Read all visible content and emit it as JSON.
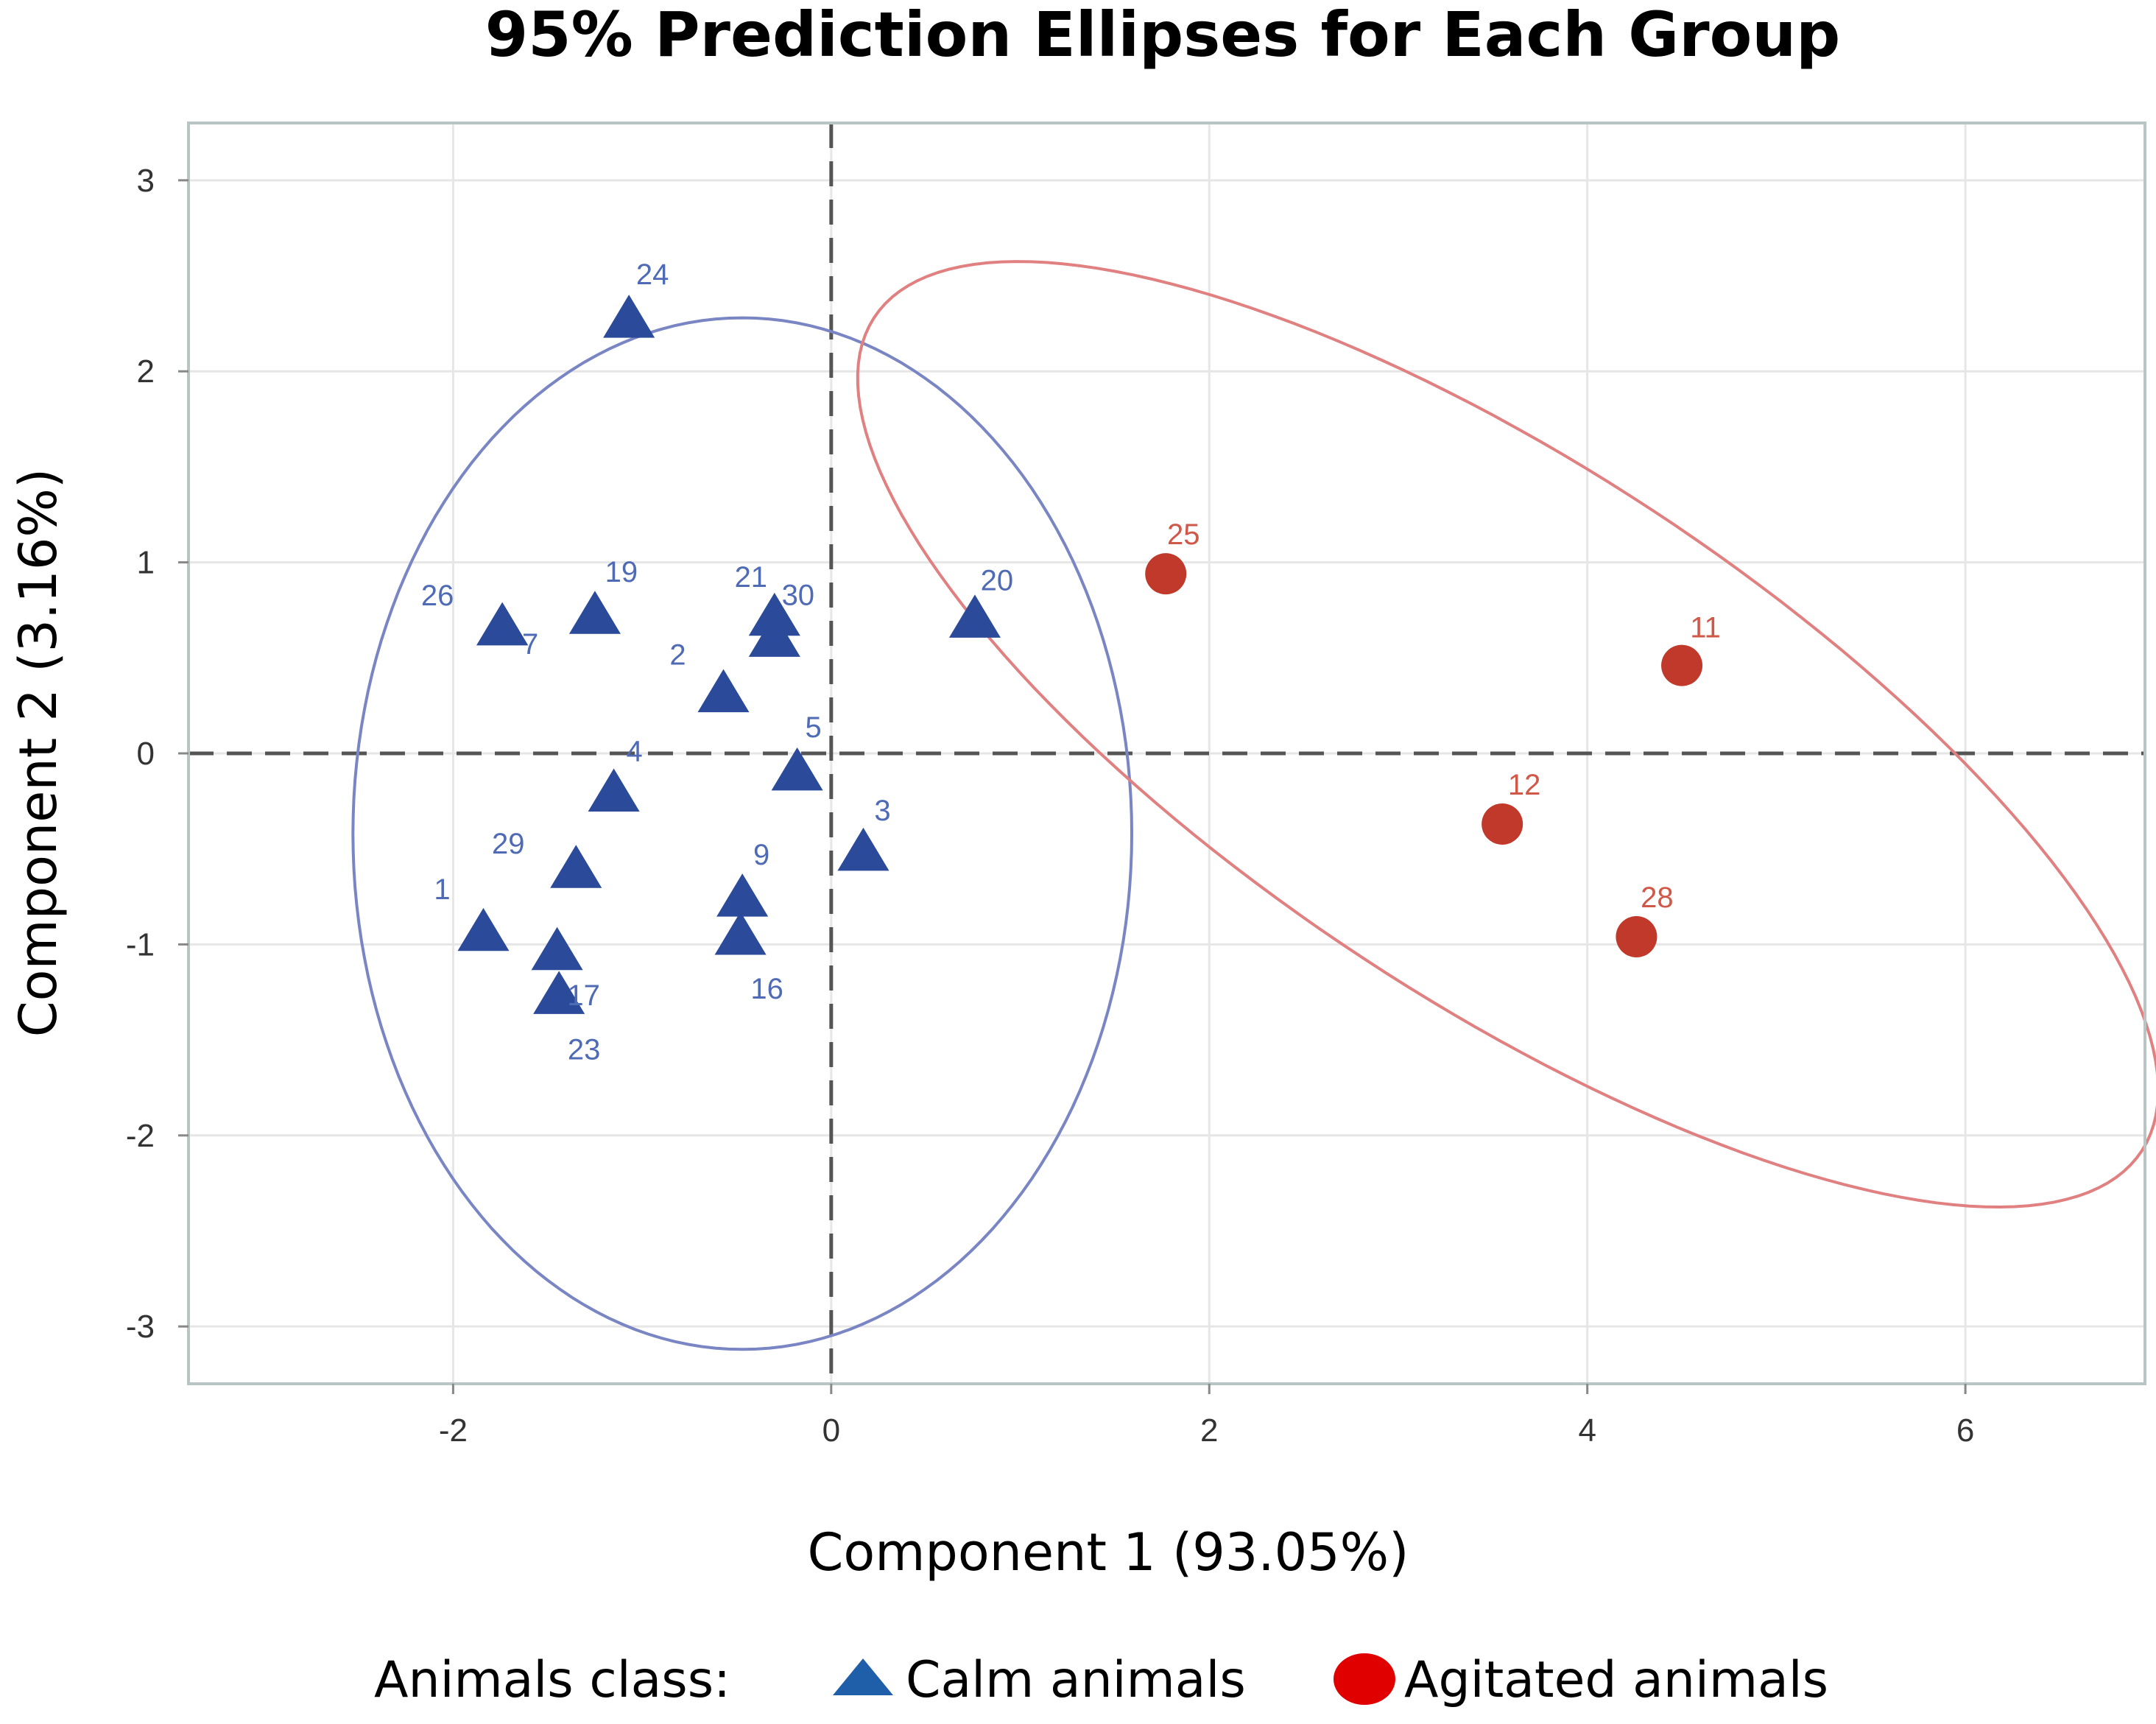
{
  "chart_data": {
    "type": "scatter",
    "title": "95% Prediction Ellipses for Each Group",
    "xlabel": "Component 1 (93.05%)",
    "ylabel": "Component 2 (3.16%)",
    "xlim": [
      -3.4,
      6.95
    ],
    "ylim": [
      -3.3,
      3.3
    ],
    "xticks": [
      -2,
      0,
      2,
      4,
      6
    ],
    "yticks": [
      -3,
      -2,
      -1,
      0,
      1,
      2,
      3
    ],
    "xtick_labels": [
      "-2",
      "0",
      "2",
      "4",
      "6"
    ],
    "ytick_labels": [
      "-3",
      "-2",
      "-1",
      "0",
      "1",
      "2",
      "3"
    ],
    "grid": true,
    "reference_lines": {
      "x": 0,
      "y": 0
    },
    "legend": {
      "position": "bottom",
      "title": "Animals class:",
      "entries": [
        "Calm animals",
        "Agitated animals"
      ]
    },
    "series": [
      {
        "name": "Calm animals",
        "marker": "triangle",
        "color": "#2b4a9a",
        "label_color": "#4f6bb5",
        "ellipse_color": "#7a86c4",
        "ellipse": {
          "cx": -0.47,
          "cy": -0.42,
          "rx": 2.06,
          "ry": 2.7,
          "angle_deg": 0
        },
        "points": [
          {
            "label": "24",
            "x": -1.07,
            "y": 2.27
          },
          {
            "label": "26",
            "x": -1.74,
            "y": 0.66
          },
          {
            "label": "7",
            "x": -1.74,
            "y": 0.66
          },
          {
            "label": "19",
            "x": -1.25,
            "y": 0.72
          },
          {
            "label": "21",
            "x": -0.3,
            "y": 0.71
          },
          {
            "label": "30",
            "x": -0.3,
            "y": 0.6
          },
          {
            "label": "2",
            "x": -0.57,
            "y": 0.31
          },
          {
            "label": "20",
            "x": 0.76,
            "y": 0.7
          },
          {
            "label": "5",
            "x": -0.18,
            "y": -0.1
          },
          {
            "label": "4",
            "x": -1.15,
            "y": -0.21
          },
          {
            "label": "3",
            "x": 0.17,
            "y": -0.52
          },
          {
            "label": "29",
            "x": -1.35,
            "y": -0.61
          },
          {
            "label": "9",
            "x": -0.47,
            "y": -0.76
          },
          {
            "label": "16",
            "x": -0.48,
            "y": -0.96
          },
          {
            "label": "1",
            "x": -1.84,
            "y": -0.94
          },
          {
            "label": "17",
            "x": -1.45,
            "y": -1.04
          },
          {
            "label": "23",
            "x": -1.44,
            "y": -1.27
          }
        ]
      },
      {
        "name": "Agitated animals",
        "marker": "circle",
        "color": "#c0392b",
        "label_color": "#d05848",
        "ellipse_color": "#e08080",
        "ellipse": {
          "cx": 3.58,
          "cy": 0.1,
          "rx": 4.0,
          "ry": 1.4,
          "angle_deg": -33
        },
        "points": [
          {
            "label": "25",
            "x": 1.77,
            "y": 0.94
          },
          {
            "label": "11",
            "x": 4.5,
            "y": 0.46
          },
          {
            "label": "12",
            "x": 3.55,
            "y": -0.37
          },
          {
            "label": "28",
            "x": 4.26,
            "y": -0.96
          }
        ]
      }
    ]
  }
}
